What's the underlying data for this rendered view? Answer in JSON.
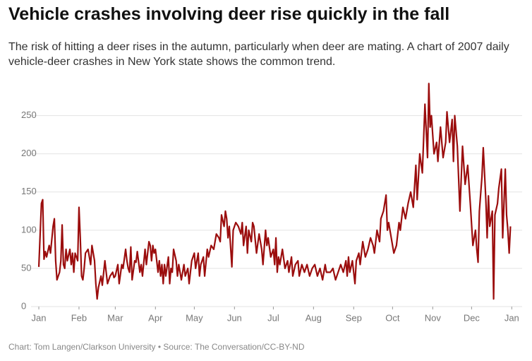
{
  "chart_data": {
    "type": "line",
    "title": "Vehicle crashes involving deer rise quickly in the fall",
    "subtitle": "The risk of hitting a deer rises in the autumn, particularly when deer are mating. A chart of 2007 daily vehicle-deer crashes in New York state shows the common trend.",
    "source": "Chart: Tom Langen/Clarkson University • Source: The Conversation/CC-BY-ND",
    "color": "#9b0d0d",
    "grid": true,
    "xlim": [
      -6,
      373
    ],
    "ylim": [
      0,
      295
    ],
    "yticks": [
      0,
      50,
      100,
      150,
      200,
      250
    ],
    "xticks": [
      {
        "value": 0,
        "label": "Jan"
      },
      {
        "value": 31,
        "label": "Feb"
      },
      {
        "value": 59,
        "label": "Mar"
      },
      {
        "value": 90,
        "label": "Apr"
      },
      {
        "value": 120,
        "label": "May"
      },
      {
        "value": 151,
        "label": "Jun"
      },
      {
        "value": 181,
        "label": "Jul"
      },
      {
        "value": 212,
        "label": "Aug"
      },
      {
        "value": 243,
        "label": "Sep"
      },
      {
        "value": 273,
        "label": "Oct"
      },
      {
        "value": 304,
        "label": "Nov"
      },
      {
        "value": 334,
        "label": "Dec"
      },
      {
        "value": 365,
        "label": "Jan"
      }
    ],
    "x": [
      0,
      2,
      3,
      4,
      5,
      6,
      8,
      9,
      11,
      12,
      13,
      14,
      16,
      17,
      18,
      19,
      20,
      21,
      22,
      24,
      25,
      26,
      27,
      28,
      30,
      31,
      32,
      33,
      34,
      35,
      36,
      38,
      40,
      41,
      43,
      44,
      45,
      46,
      48,
      49,
      51,
      52,
      53,
      55,
      57,
      58,
      59,
      61,
      62,
      64,
      65,
      67,
      68,
      69,
      70,
      71,
      72,
      74,
      75,
      76,
      78,
      79,
      80,
      82,
      83,
      85,
      86,
      87,
      88,
      89,
      90,
      92,
      93,
      94,
      95,
      96,
      97,
      98,
      100,
      101,
      102,
      103,
      104,
      106,
      107,
      108,
      110,
      112,
      113,
      115,
      116,
      118,
      120,
      121,
      123,
      124,
      125,
      127,
      128,
      130,
      131,
      133,
      135,
      137,
      139,
      140,
      141,
      143,
      144,
      145,
      146,
      147,
      149,
      150,
      152,
      154,
      156,
      157,
      158,
      160,
      161,
      162,
      164,
      165,
      166,
      168,
      170,
      172,
      173,
      175,
      176,
      177,
      179,
      181,
      182,
      183,
      184,
      185,
      186,
      188,
      190,
      192,
      193,
      195,
      196,
      198,
      200,
      201,
      203,
      205,
      207,
      209,
      211,
      213,
      215,
      217,
      219,
      221,
      222,
      225,
      227,
      229,
      231,
      233,
      235,
      237,
      238,
      239,
      240,
      242,
      244,
      245,
      247,
      248,
      250,
      252,
      254,
      256,
      258,
      259,
      261,
      263,
      264,
      266,
      268,
      269,
      270,
      272,
      274,
      276,
      278,
      279,
      281,
      283,
      285,
      287,
      289,
      291,
      292,
      294,
      296,
      298,
      300,
      301,
      302,
      303,
      305,
      307,
      308,
      310,
      312,
      314,
      315,
      317,
      319,
      320,
      321,
      323,
      325,
      327,
      329,
      331,
      333,
      335,
      337,
      338,
      339,
      340,
      342,
      343,
      345,
      346,
      347,
      348,
      350,
      351,
      352,
      354,
      355,
      357,
      358,
      360,
      361,
      362,
      363,
      364
    ],
    "values": [
      52,
      135,
      140,
      62,
      72,
      65,
      80,
      70,
      105,
      115,
      60,
      35,
      45,
      60,
      107,
      55,
      50,
      75,
      60,
      75,
      55,
      70,
      45,
      70,
      60,
      130,
      90,
      40,
      35,
      50,
      70,
      75,
      55,
      80,
      60,
      30,
      10,
      25,
      40,
      28,
      60,
      45,
      30,
      40,
      45,
      38,
      40,
      55,
      30,
      55,
      50,
      75,
      60,
      50,
      45,
      78,
      35,
      60,
      58,
      72,
      45,
      55,
      40,
      75,
      55,
      85,
      80,
      60,
      80,
      70,
      75,
      45,
      60,
      40,
      55,
      30,
      55,
      40,
      65,
      30,
      50,
      45,
      75,
      60,
      40,
      55,
      35,
      55,
      40,
      50,
      30,
      60,
      70,
      50,
      70,
      40,
      55,
      65,
      40,
      75,
      65,
      80,
      75,
      95,
      90,
      85,
      120,
      105,
      125,
      115,
      90,
      105,
      52,
      100,
      110,
      105,
      95,
      110,
      80,
      105,
      70,
      100,
      85,
      110,
      105,
      70,
      95,
      75,
      55,
      100,
      80,
      90,
      65,
      75,
      55,
      90,
      45,
      65,
      55,
      75,
      50,
      60,
      45,
      65,
      40,
      55,
      60,
      40,
      55,
      45,
      55,
      40,
      50,
      55,
      40,
      50,
      35,
      55,
      45,
      45,
      50,
      35,
      45,
      55,
      45,
      60,
      40,
      65,
      45,
      60,
      30,
      60,
      70,
      55,
      85,
      65,
      75,
      90,
      80,
      70,
      100,
      85,
      115,
      125,
      146,
      100,
      110,
      90,
      70,
      80,
      110,
      100,
      130,
      115,
      135,
      150,
      130,
      185,
      140,
      200,
      175,
      265,
      195,
      292,
      235,
      250,
      200,
      215,
      190,
      235,
      195,
      215,
      255,
      215,
      245,
      190,
      250,
      210,
      125,
      210,
      160,
      185,
      135,
      80,
      100,
      75,
      58,
      125,
      170,
      208,
      140,
      90,
      145,
      105,
      125,
      10,
      120,
      135,
      155,
      180,
      90,
      180,
      120,
      100,
      70,
      105
    ]
  }
}
